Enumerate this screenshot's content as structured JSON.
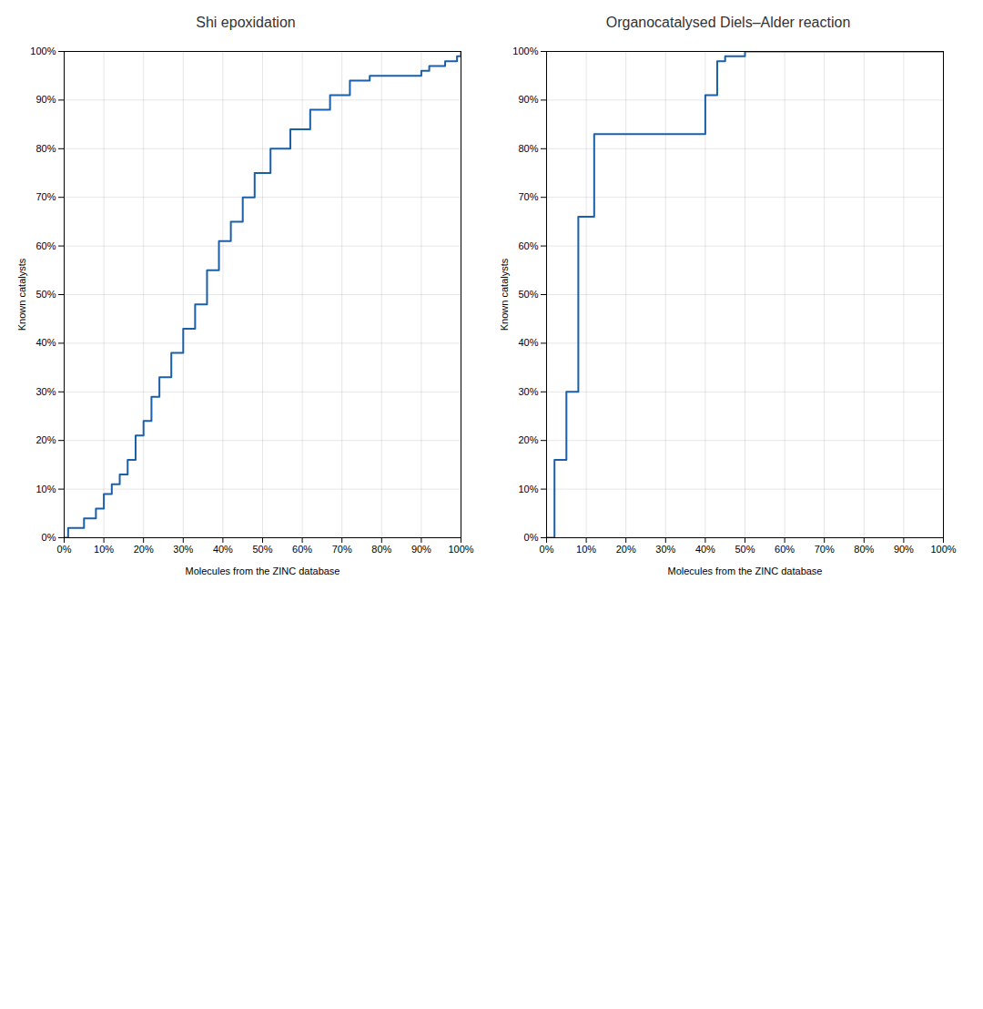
{
  "chart_data": [
    {
      "type": "step",
      "title": "Shi epoxidation",
      "xlabel": "Molecules from the ZINC database",
      "ylabel": "Known catalysts",
      "x": [
        0,
        1,
        5,
        8,
        10,
        12,
        14,
        16,
        18,
        20,
        22,
        24,
        27,
        30,
        33,
        36,
        39,
        42,
        45,
        48,
        52,
        57,
        62,
        67,
        72,
        77,
        82,
        87,
        90,
        92,
        94,
        96,
        99,
        100
      ],
      "values": [
        0,
        2,
        4,
        6,
        9,
        11,
        13,
        16,
        21,
        24,
        29,
        33,
        38,
        43,
        48,
        55,
        61,
        65,
        70,
        75,
        80,
        84,
        88,
        91,
        94,
        95,
        95,
        95,
        96,
        97,
        97,
        98,
        99,
        100
      ],
      "color": "#1a5fa8",
      "xlim": [
        0,
        100
      ],
      "xticks": [
        {
          "value": 0,
          "label": "0%"
        },
        {
          "value": 10,
          "label": "10%"
        },
        {
          "value": 20,
          "label": "20%"
        },
        {
          "value": 30,
          "label": "30%"
        },
        {
          "value": 40,
          "label": "40%"
        },
        {
          "value": 50,
          "label": "50%"
        },
        {
          "value": 60,
          "label": "60%"
        },
        {
          "value": 70,
          "label": "70%"
        },
        {
          "value": 80,
          "label": "80%"
        },
        {
          "value": 90,
          "label": "90%"
        },
        {
          "value": 100,
          "label": "100%"
        }
      ],
      "ylim": [
        0,
        100
      ],
      "yticks": [
        {
          "value": 0,
          "label": "0%"
        },
        {
          "value": 10,
          "label": "10%"
        },
        {
          "value": 20,
          "label": "20%"
        },
        {
          "value": 30,
          "label": "30%"
        },
        {
          "value": 40,
          "label": "40%"
        },
        {
          "value": 50,
          "label": "50%"
        },
        {
          "value": 60,
          "label": "60%"
        },
        {
          "value": 70,
          "label": "70%"
        },
        {
          "value": 80,
          "label": "80%"
        },
        {
          "value": 90,
          "label": "90%"
        },
        {
          "value": 100,
          "label": "100%"
        }
      ],
      "grid": true
    },
    {
      "type": "step",
      "title": "Organocatalysed Diels–Alder reaction",
      "xlabel": "Molecules from the ZINC database",
      "ylabel": "Known catalysts",
      "x": [
        0,
        2,
        5,
        8,
        12,
        17,
        22,
        27,
        32,
        37,
        40,
        43,
        45,
        50,
        60,
        70,
        80,
        90,
        100
      ],
      "values": [
        0,
        16,
        30,
        66,
        83,
        83,
        83,
        83,
        83,
        83,
        91,
        98,
        99,
        100,
        100,
        100,
        100,
        100,
        100
      ],
      "color": "#1a5fa8",
      "xlim": [
        0,
        100
      ],
      "xticks": [
        {
          "value": 0,
          "label": "0%"
        },
        {
          "value": 10,
          "label": "10%"
        },
        {
          "value": 20,
          "label": "20%"
        },
        {
          "value": 30,
          "label": "30%"
        },
        {
          "value": 40,
          "label": "40%"
        },
        {
          "value": 50,
          "label": "50%"
        },
        {
          "value": 60,
          "label": "60%"
        },
        {
          "value": 70,
          "label": "70%"
        },
        {
          "value": 80,
          "label": "80%"
        },
        {
          "value": 90,
          "label": "90%"
        },
        {
          "value": 100,
          "label": "100%"
        }
      ],
      "ylim": [
        0,
        100
      ],
      "yticks": [
        {
          "value": 0,
          "label": "0%"
        },
        {
          "value": 10,
          "label": "10%"
        },
        {
          "value": 20,
          "label": "20%"
        },
        {
          "value": 30,
          "label": "30%"
        },
        {
          "value": 40,
          "label": "40%"
        },
        {
          "value": 50,
          "label": "50%"
        },
        {
          "value": 60,
          "label": "60%"
        },
        {
          "value": 70,
          "label": "70%"
        },
        {
          "value": 80,
          "label": "80%"
        },
        {
          "value": 90,
          "label": "90%"
        },
        {
          "value": 100,
          "label": "100%"
        }
      ],
      "grid": true
    }
  ]
}
